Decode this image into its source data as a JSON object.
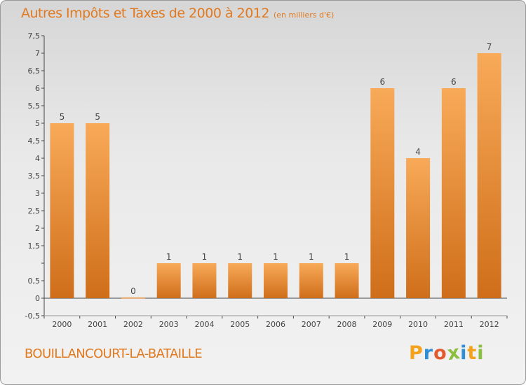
{
  "header": {
    "title": "Autres Impôts et Taxes de 2000 à 2012",
    "subtitle": "(en milliers d'€)"
  },
  "footer": {
    "commune": "BOUILLANCOURT-LA-BATAILLE",
    "logo_letters": [
      "P",
      "r",
      "o",
      "x",
      "i",
      "t",
      "i"
    ],
    "logo_colors": [
      "#f4a21c",
      "#2f8fd6",
      "#e35a2e",
      "#8bbf3f",
      "#2f8fd6",
      "#f4a21c",
      "#8bbf3f"
    ]
  },
  "chart_data": {
    "type": "bar",
    "title": "Autres Impôts et Taxes de 2000 à 2012",
    "subtitle": "(en milliers d'€)",
    "categories": [
      "2000",
      "2001",
      "2002",
      "2003",
      "2004",
      "2005",
      "2006",
      "2007",
      "2008",
      "2009",
      "2010",
      "2011",
      "2012"
    ],
    "values": [
      5,
      5,
      0,
      1,
      1,
      1,
      1,
      1,
      1,
      6,
      4,
      6,
      7
    ],
    "data_labels": [
      "5",
      "5",
      "0",
      "1",
      "1",
      "1",
      "1",
      "1",
      "1",
      "6",
      "4",
      "6",
      "7"
    ],
    "ylim": [
      -0.5,
      7.5
    ],
    "yticks": [
      -0.5,
      0,
      0.5,
      1,
      1.5,
      2,
      2.5,
      3,
      3.5,
      4,
      4.5,
      5,
      5.5,
      6,
      6.5,
      7,
      7.5
    ],
    "ytick_labels": [
      "-0,5",
      "0",
      "0,5",
      "",
      "1,5",
      "2",
      "2,5",
      "3",
      "3,5",
      "4",
      "4,5",
      "5",
      "5,5",
      "6",
      "6,5",
      "7",
      "7,5"
    ],
    "xlabel": "",
    "ylabel": "",
    "grid": false,
    "colors": {
      "bar_light": "#f7a654",
      "bar_dark": "#d0701c",
      "text": "#e0791f",
      "axis": "#444444"
    }
  }
}
